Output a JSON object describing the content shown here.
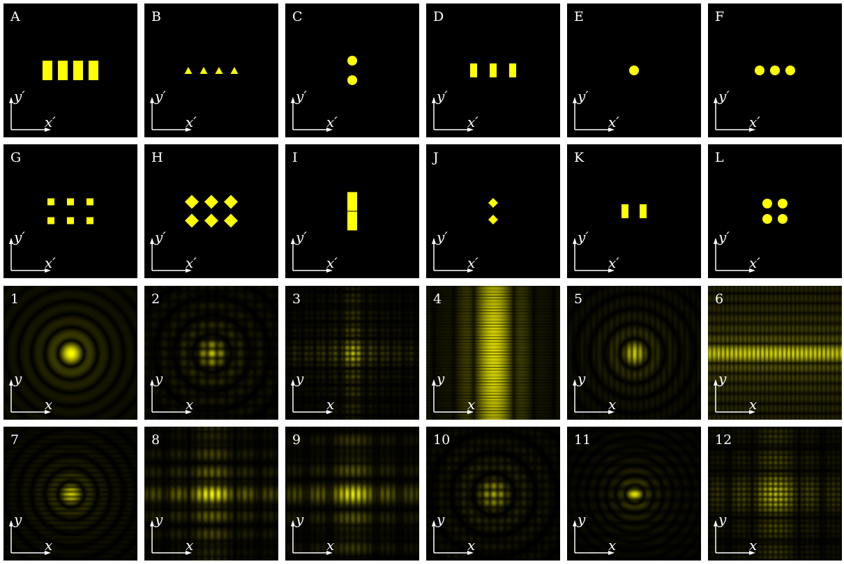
{
  "apertures": [
    {
      "label": "A",
      "shape": "rect",
      "cols": 4,
      "rows": 1,
      "w": 14,
      "h": 28,
      "dx": 22,
      "dy": 0
    },
    {
      "label": "B",
      "shape": "tri",
      "cols": 4,
      "rows": 1,
      "w": 11,
      "h": 10,
      "dx": 22,
      "dy": 0
    },
    {
      "label": "C",
      "shape": "circle",
      "cols": 1,
      "rows": 2,
      "w": 14,
      "h": 14,
      "dx": 0,
      "dy": 28
    },
    {
      "label": "D",
      "shape": "rect",
      "cols": 3,
      "rows": 1,
      "w": 10,
      "h": 20,
      "dx": 28,
      "dy": 0
    },
    {
      "label": "E",
      "shape": "circle",
      "cols": 1,
      "rows": 1,
      "w": 14,
      "h": 14,
      "dx": 0,
      "dy": 0
    },
    {
      "label": "F",
      "shape": "circle",
      "cols": 3,
      "rows": 1,
      "w": 14,
      "h": 14,
      "dx": 22,
      "dy": 0
    },
    {
      "label": "G",
      "shape": "rect",
      "cols": 3,
      "rows": 2,
      "w": 10,
      "h": 10,
      "dx": 28,
      "dy": 27
    },
    {
      "label": "H",
      "shape": "diamond",
      "cols": 3,
      "rows": 2,
      "w": 20,
      "h": 20,
      "dx": 28,
      "dy": 27
    },
    {
      "label": "I",
      "shape": "rect",
      "cols": 1,
      "rows": 2,
      "w": 14,
      "h": 27,
      "dx": 0,
      "dy": 28
    },
    {
      "label": "J",
      "shape": "diamond",
      "cols": 1,
      "rows": 2,
      "w": 14,
      "h": 14,
      "dx": 0,
      "dy": 24
    },
    {
      "label": "K",
      "shape": "rect",
      "cols": 2,
      "rows": 1,
      "w": 10,
      "h": 20,
      "dx": 26,
      "dy": 0
    },
    {
      "label": "L",
      "shape": "circle",
      "cols": 2,
      "rows": 2,
      "w": 14,
      "h": 14,
      "dx": 22,
      "dy": 22
    }
  ],
  "patterns": [
    {
      "label": "1",
      "type": "airy",
      "fx": 0,
      "fy": 0,
      "nx": 0,
      "ny": 0,
      "ring": 16,
      "core": 1.0
    },
    {
      "label": "2",
      "type": "airy",
      "fx": 0.55,
      "fy": 0.55,
      "nx": 0,
      "ny": 0,
      "ring": 11,
      "core": 0.8
    },
    {
      "label": "3",
      "type": "grid",
      "fx": 0.9,
      "fy": 0.9,
      "nx": 0.55,
      "ny": 0.45,
      "ring": 0,
      "core": 0.7
    },
    {
      "label": "4",
      "type": "grid",
      "fx": 0.05,
      "fy": 1.7,
      "nx": 0.35,
      "ny": 0.05,
      "ring": 0,
      "core": 0.85
    },
    {
      "label": "5",
      "type": "airy",
      "fx": 0.9,
      "fy": 0,
      "nx": 0,
      "ny": 0,
      "ring": 14,
      "core": 0.85
    },
    {
      "label": "6",
      "type": "grid",
      "fx": 1.2,
      "fy": 0,
      "nx": 0,
      "ny": 0.7,
      "ring": 0,
      "core": 0.75
    },
    {
      "label": "7",
      "type": "airy",
      "fx": 0,
      "fy": 1.1,
      "nx": 0,
      "ny": 0,
      "ring": 16,
      "core": 0.85
    },
    {
      "label": "8",
      "type": "grid",
      "fx": 0.8,
      "fy": 0.25,
      "nx": 0.3,
      "ny": 0.45,
      "ring": 0,
      "core": 0.85
    },
    {
      "label": "9",
      "type": "grid",
      "fx": 0.9,
      "fy": 0.2,
      "nx": 0.3,
      "ny": 0.45,
      "ring": 0,
      "core": 0.8
    },
    {
      "label": "10",
      "type": "airy",
      "fx": 0.7,
      "fy": 0.6,
      "nx": 0,
      "ny": 0,
      "ring": 10,
      "core": 0.7
    },
    {
      "label": "11",
      "type": "airy",
      "fx": 0,
      "fy": 0.45,
      "nx": 0,
      "ny": 0,
      "ring": 22,
      "core": 0.9
    },
    {
      "label": "12",
      "type": "grid",
      "fx": 1.0,
      "fy": 1.0,
      "nx": 0.3,
      "ny": 0.3,
      "ring": 0,
      "core": 0.7
    }
  ],
  "axes": {
    "aperture_x": "x′",
    "aperture_y": "y′",
    "pattern_x": "x",
    "pattern_y": "y"
  },
  "colors": {
    "bg": "#000000",
    "light": "#ffff00",
    "axis": "#ffffff"
  }
}
